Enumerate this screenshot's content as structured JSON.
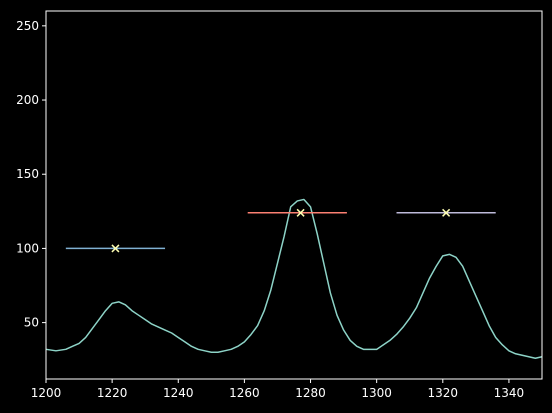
{
  "chart_data": {
    "type": "line",
    "title": "",
    "xlabel": "",
    "ylabel": "",
    "xlim": [
      1200,
      1350
    ],
    "ylim": [
      12,
      260
    ],
    "grid": false,
    "x_ticks": [
      1200,
      1220,
      1240,
      1260,
      1280,
      1300,
      1320,
      1340
    ],
    "y_ticks": [
      50,
      100,
      150,
      200,
      250
    ],
    "colors": {
      "background": "#000000",
      "axes": "#ffffff",
      "signal": "#8dd3c7",
      "marker": "#ffffb3"
    },
    "series": [
      {
        "color": "#8dd3c7",
        "x": [
          1200,
          1203,
          1206,
          1208,
          1210,
          1212,
          1214,
          1216,
          1218,
          1220,
          1222,
          1224,
          1226,
          1228,
          1230,
          1232,
          1234,
          1236,
          1238,
          1240,
          1242,
          1244,
          1246,
          1248,
          1250,
          1252,
          1254,
          1256,
          1258,
          1260,
          1262,
          1264,
          1266,
          1268,
          1270,
          1272,
          1274,
          1276,
          1278,
          1280,
          1282,
          1284,
          1286,
          1288,
          1290,
          1292,
          1294,
          1296,
          1298,
          1300,
          1302,
          1304,
          1306,
          1308,
          1310,
          1312,
          1314,
          1316,
          1318,
          1320,
          1322,
          1324,
          1326,
          1328,
          1330,
          1332,
          1334,
          1336,
          1338,
          1340,
          1342,
          1344,
          1346,
          1348,
          1350
        ],
        "y": [
          32,
          31,
          32,
          34,
          36,
          40,
          46,
          52,
          58,
          63,
          64,
          62,
          58,
          55,
          52,
          49,
          47,
          45,
          43,
          40,
          37,
          34,
          32,
          31,
          30,
          30,
          31,
          32,
          34,
          37,
          42,
          48,
          58,
          72,
          90,
          108,
          128,
          132,
          133,
          128,
          110,
          90,
          70,
          55,
          45,
          38,
          34,
          32,
          32,
          32,
          35,
          38,
          42,
          47,
          53,
          60,
          70,
          80,
          88,
          95,
          96,
          94,
          88,
          78,
          68,
          58,
          48,
          40,
          35,
          31,
          29,
          28,
          27,
          26,
          27
        ]
      }
    ],
    "intervals": [
      {
        "x_start": 1206,
        "x_end": 1236,
        "y": 100,
        "marker_x": 1221,
        "color": "#80b1d3"
      },
      {
        "x_start": 1261,
        "x_end": 1291,
        "y": 124,
        "marker_x": 1277,
        "color": "#fb8072"
      },
      {
        "x_start": 1306,
        "x_end": 1336,
        "y": 124,
        "marker_x": 1321,
        "color": "#bebada"
      }
    ]
  }
}
